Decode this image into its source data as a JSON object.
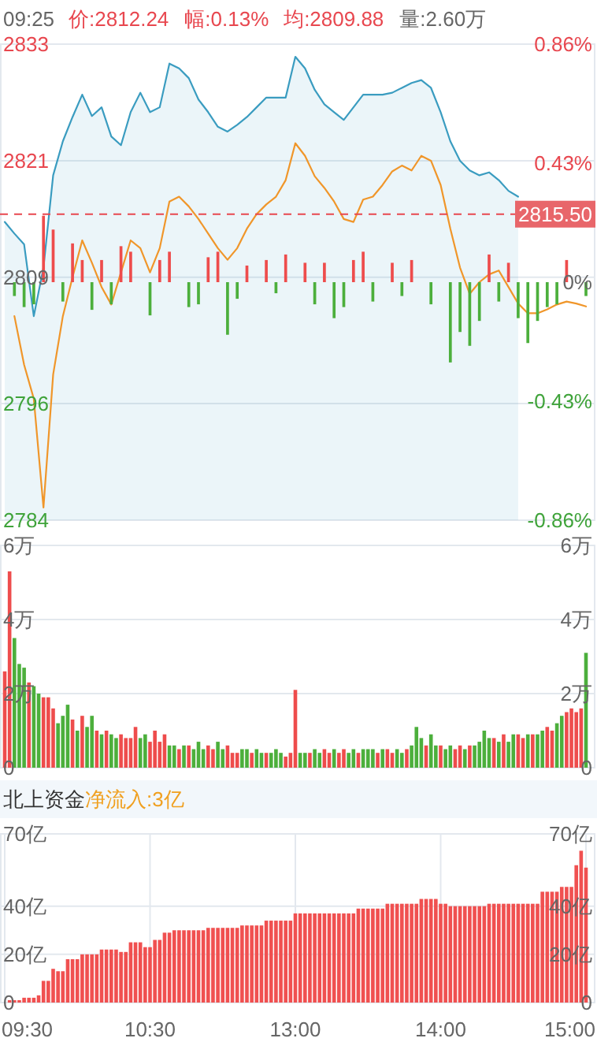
{
  "chart_data": [
    {
      "type": "line",
      "annotations": [
        "09:25",
        "价:2812.24",
        "幅:0.13%",
        "均:2809.88",
        "量:2.60万"
      ],
      "categories": [
        null,
        null,
        null,
        null,
        null,
        null,
        null,
        null,
        null,
        null,
        null,
        null,
        null,
        null,
        null,
        null,
        null,
        null,
        null,
        null,
        null,
        null,
        null,
        null,
        null,
        null,
        null,
        null,
        null,
        null,
        null,
        null,
        null,
        null,
        null,
        null,
        null,
        null,
        null,
        null,
        null,
        null,
        null,
        null,
        null,
        null,
        null,
        null,
        null,
        null,
        null,
        null,
        null,
        null,
        null,
        null,
        null,
        null,
        null,
        null,
        null
      ],
      "ylim": [
        2784,
        2833
      ],
      "yticks": [
        2784,
        2796,
        2809,
        2821,
        2833
      ],
      "y2lim": [
        -0.86,
        0.86
      ],
      "y2ticks": [
        {
          "value": -0.86,
          "label": "-0.86%"
        },
        {
          "value": -0.43,
          "label": "-0.43%"
        },
        {
          "value": 0,
          "label": "0%"
        },
        {
          "value": 0.43,
          "label": "0.43%"
        },
        {
          "value": 0.86,
          "label": "0.86%"
        }
      ],
      "grid": "y",
      "tick_labels": "y",
      "ref_lines": [
        {
          "axis": "y",
          "value": 2815.5,
          "label": "2815.50",
          "color": "#e8474f",
          "line_style": "dashed"
        }
      ],
      "series": [
        {
          "type": "area",
          "color": "#3a9cc0",
          "values": [
            2814.7,
            2813.5,
            2812.4,
            2805,
            2810,
            2819.5,
            2823,
            2825.5,
            2827.8,
            2825.6,
            2826.5,
            2823.5,
            2822.6,
            2826,
            2828,
            2826,
            2826.5,
            2831,
            2830.5,
            2829.5,
            2827.3,
            2826,
            2824.5,
            2824,
            2824.7,
            2825.5,
            2826.5,
            2827.5,
            2827.5,
            2827.5,
            2831.7,
            2830.5,
            2828.3,
            2826.8,
            2826,
            2825.2,
            2826.5,
            2827.8,
            2827.8,
            2827.8,
            2828,
            2828.5,
            2829,
            2829.3,
            2828.5,
            2826,
            2823,
            2821,
            2820,
            2819.5,
            2819.8,
            2819,
            2817.9,
            2817.3,
            null,
            null,
            null,
            null,
            null,
            null,
            null
          ]
        },
        {
          "color": "#f0962a",
          "values": [
            null,
            2805,
            2800,
            2796.5,
            2785.3,
            2799,
            2805,
            2809,
            2812.8,
            2810.5,
            2808,
            2806.2,
            2809.5,
            2812.8,
            2812,
            2809.5,
            2812,
            2816.8,
            2817.3,
            2816.3,
            2815,
            2813.5,
            2812,
            2810.8,
            2812,
            2814,
            2815.5,
            2816.5,
            2817.3,
            2819,
            2822.8,
            2821.5,
            2819.4,
            2818.2,
            2816.8,
            2815,
            2814.7,
            2817,
            2817.3,
            2818.5,
            2819.9,
            2820.5,
            2820,
            2821.5,
            2821,
            2818.5,
            2814,
            2810,
            2807.3,
            2808.5,
            2809.3,
            2809.7,
            2808,
            2806.3,
            2805.3,
            2805.3,
            2805.7,
            2806.2,
            2806.5,
            2806.3,
            2806
          ]
        },
        {
          "type": "bar",
          "axis": "y2",
          "color": "#ee4c4c",
          "values": [
            null,
            null,
            null,
            null,
            0.24,
            0.19,
            null,
            0.14,
            0.08,
            null,
            0.08,
            null,
            0.13,
            0.11,
            null,
            null,
            0.08,
            0.11,
            null,
            null,
            null,
            0.09,
            0.11,
            null,
            null,
            0.06,
            null,
            0.08,
            null,
            0.1,
            null,
            0.07,
            null,
            0.07,
            null,
            null,
            0.08,
            0.11,
            null,
            null,
            0.07,
            null,
            0.08,
            null,
            null,
            null,
            null,
            null,
            null,
            null,
            0.1,
            null,
            0.07,
            null,
            null,
            null,
            null,
            null,
            0.08,
            null,
            null
          ]
        },
        {
          "type": "bar",
          "axis": "y2",
          "color": "#4caf3c",
          "values": [
            null,
            -0.05,
            -0.09,
            -0.08,
            null,
            null,
            -0.07,
            null,
            null,
            -0.1,
            null,
            -0.08,
            null,
            null,
            null,
            -0.12,
            null,
            null,
            null,
            -0.09,
            -0.08,
            null,
            null,
            -0.19,
            -0.06,
            null,
            null,
            null,
            -0.04,
            null,
            null,
            null,
            -0.08,
            null,
            -0.13,
            -0.09,
            null,
            null,
            -0.07,
            null,
            null,
            -0.05,
            null,
            null,
            -0.08,
            null,
            -0.29,
            -0.18,
            -0.23,
            -0.14,
            null,
            -0.07,
            null,
            -0.13,
            -0.22,
            -0.14,
            -0.09,
            -0.08,
            null,
            null,
            -0.05
          ]
        }
      ]
    },
    {
      "type": "bar",
      "categories": [
        null,
        null,
        null,
        null,
        null,
        null,
        null,
        null,
        null,
        null,
        null,
        null,
        null,
        null,
        null,
        null,
        null,
        null,
        null,
        null,
        null,
        null,
        null,
        null,
        null,
        null,
        null,
        null,
        null,
        null,
        null,
        null,
        null,
        null,
        null,
        null,
        null,
        null,
        null,
        null,
        null,
        null,
        null,
        null,
        null,
        null,
        null,
        null,
        null,
        null,
        null,
        null,
        null,
        null,
        null,
        null,
        null,
        null,
        null,
        null,
        null,
        null,
        null,
        null,
        null,
        null,
        null,
        null,
        null,
        null,
        null,
        null,
        null,
        null,
        null,
        null,
        null,
        null,
        null,
        null,
        null,
        null,
        null,
        null,
        null,
        null,
        null,
        null,
        null,
        null,
        null,
        null,
        null,
        null,
        null,
        null,
        null,
        null,
        null,
        null,
        null,
        null,
        null,
        null,
        null,
        null,
        null,
        null,
        null,
        null,
        null,
        null,
        null,
        null,
        null,
        null,
        null,
        null,
        null,
        null,
        null
      ],
      "ylim": [
        0,
        6
      ],
      "yticks": [
        0,
        {
          "value": 2,
          "label": "2万"
        },
        {
          "value": 4,
          "label": "4万"
        },
        {
          "value": 6,
          "label": "6万"
        }
      ],
      "y2lim": [
        0,
        6
      ],
      "y2ticks": [
        0,
        {
          "value": 2,
          "label": "2万"
        },
        {
          "value": 4,
          "label": "4万"
        },
        {
          "value": 6,
          "label": "6万"
        }
      ],
      "grid": "y",
      "tick_labels": "y",
      "values": [
        2.6,
        5.3,
        3.5,
        2.8,
        2.7,
        2.3,
        2.2,
        2.0,
        1.9,
        1.9,
        1.6,
        1.2,
        1.4,
        1.7,
        1.3,
        1.0,
        1.4,
        1.1,
        1.4,
        1.0,
        0.9,
        1.0,
        0.9,
        0.8,
        0.9,
        0.8,
        0.8,
        1.1,
        0.8,
        0.9,
        0.7,
        1.0,
        0.7,
        0.9,
        0.6,
        0.6,
        0.5,
        0.6,
        0.6,
        0.5,
        0.7,
        0.5,
        0.6,
        0.5,
        0.7,
        0.5,
        0.6,
        0.4,
        0.4,
        0.5,
        0.5,
        0.4,
        0.5,
        0.4,
        0.4,
        0.4,
        0.5,
        0.4,
        0.3,
        0.4,
        2.1,
        0.4,
        0.4,
        0.4,
        0.5,
        0.4,
        0.5,
        0.4,
        0.5,
        0.4,
        0.5,
        0.4,
        0.5,
        0.4,
        0.5,
        0.5,
        0.5,
        0.4,
        0.5,
        0.5,
        0.4,
        0.5,
        0.4,
        0.5,
        0.6,
        1.1,
        0.8,
        0.6,
        0.9,
        0.6,
        0.6,
        0.5,
        0.6,
        0.5,
        0.6,
        0.5,
        0.6,
        0.6,
        0.7,
        1.0,
        0.8,
        0.8,
        0.7,
        0.9,
        0.7,
        0.9,
        0.9,
        0.8,
        0.9,
        0.9,
        0.9,
        1.0,
        1.1,
        1.0,
        1.2,
        1.4,
        1.5,
        1.6,
        1.5,
        1.6,
        3.1
      ],
      "colors": [
        "#ee4c4c",
        "#ee4c4c",
        "#4caf3c",
        "#4caf3c",
        "#4caf3c",
        "#ee4c4c",
        "#4caf3c",
        "#4caf3c",
        "#ee4c4c",
        "#ee4c4c",
        "#ee4c4c",
        "#4caf3c",
        "#4caf3c",
        "#4caf3c",
        "#ee4c4c",
        "#4caf3c",
        "#ee4c4c",
        "#4caf3c",
        "#4caf3c",
        "#ee4c4c",
        "#4caf3c",
        "#ee4c4c",
        "#4caf3c",
        "#4caf3c",
        "#ee4c4c",
        "#ee4c4c",
        "#ee4c4c",
        "#ee4c4c",
        "#4caf3c",
        "#4caf3c",
        "#ee4c4c",
        "#ee4c4c",
        "#ee4c4c",
        "#ee4c4c",
        "#4caf3c",
        "#4caf3c",
        "#ee4c4c",
        "#4caf3c",
        "#ee4c4c",
        "#4caf3c",
        "#4caf3c",
        "#4caf3c",
        "#ee4c4c",
        "#ee4c4c",
        "#4caf3c",
        "#4caf3c",
        "#ee4c4c",
        "#ee4c4c",
        "#ee4c4c",
        "#4caf3c",
        "#4caf3c",
        "#ee4c4c",
        "#4caf3c",
        "#4caf3c",
        "#ee4c4c",
        "#4caf3c",
        "#4caf3c",
        "#4caf3c",
        "#ee4c4c",
        "#ee4c4c",
        "#ee4c4c",
        "#4caf3c",
        "#4caf3c",
        "#ee4c4c",
        "#4caf3c",
        "#4caf3c",
        "#ee4c4c",
        "#ee4c4c",
        "#4caf3c",
        "#ee4c4c",
        "#ee4c4c",
        "#4caf3c",
        "#4caf3c",
        "#ee4c4c",
        "#4caf3c",
        "#4caf3c",
        "#4caf3c",
        "#ee4c4c",
        "#4caf3c",
        "#ee4c4c",
        "#ee4c4c",
        "#4caf3c",
        "#4caf3c",
        "#ee4c4c",
        "#4caf3c",
        "#4caf3c",
        "#4caf3c",
        "#ee4c4c",
        "#4caf3c",
        "#4caf3c",
        "#ee4c4c",
        "#4caf3c",
        "#4caf3c",
        "#ee4c4c",
        "#ee4c4c",
        "#4caf3c",
        "#ee4c4c",
        "#4caf3c",
        "#4caf3c",
        "#4caf3c",
        "#4caf3c",
        "#ee4c4c",
        "#4caf3c",
        "#ee4c4c",
        "#4caf3c",
        "#4caf3c",
        "#ee4c4c",
        "#ee4c4c",
        "#4caf3c",
        "#ee4c4c",
        "#4caf3c",
        "#4caf3c",
        "#ee4c4c",
        "#ee4c4c",
        "#4caf3c",
        "#4caf3c",
        "#ee4c4c",
        "#ee4c4c",
        "#ee4c4c",
        "#ee4c4c",
        "#4caf3c"
      ]
    },
    {
      "type": "bar",
      "title": "北上资金",
      "subtitle": "净流入:3亿",
      "color": "#f05050",
      "categories": [
        "09:30",
        null,
        null,
        null,
        null,
        null,
        null,
        null,
        null,
        null,
        null,
        null,
        null,
        null,
        null,
        null,
        null,
        null,
        null,
        null,
        null,
        null,
        null,
        null,
        null,
        null,
        null,
        null,
        null,
        null,
        "10:30",
        null,
        null,
        null,
        null,
        null,
        null,
        null,
        null,
        null,
        null,
        null,
        null,
        null,
        null,
        null,
        null,
        null,
        null,
        null,
        null,
        null,
        null,
        null,
        null,
        null,
        null,
        null,
        null,
        null,
        "13:00",
        null,
        null,
        null,
        null,
        null,
        null,
        null,
        null,
        null,
        null,
        null,
        null,
        null,
        null,
        null,
        null,
        null,
        null,
        null,
        null,
        null,
        null,
        null,
        null,
        null,
        null,
        null,
        null,
        null,
        "14:00",
        null,
        null,
        null,
        null,
        null,
        null,
        null,
        null,
        null,
        null,
        null,
        null,
        null,
        null,
        null,
        null,
        null,
        null,
        null,
        null,
        null,
        null,
        null,
        null,
        null,
        null,
        null,
        null,
        null,
        "15:00"
      ],
      "ylim": [
        0,
        70
      ],
      "yticks": [
        0,
        {
          "value": 20,
          "label": "20亿"
        },
        {
          "value": 40,
          "label": "40亿"
        },
        {
          "value": 70,
          "label": "70亿"
        }
      ],
      "y2lim": [
        0,
        70
      ],
      "y2ticks": [
        0,
        {
          "value": 20,
          "label": "20亿"
        },
        {
          "value": 40,
          "label": "40亿"
        },
        {
          "value": 70,
          "label": "70亿"
        }
      ],
      "grid": true,
      "values": [
        null,
        1,
        1,
        1,
        2,
        2,
        2,
        3,
        9,
        9,
        14,
        13,
        13,
        18,
        18,
        18,
        20,
        20,
        20,
        20,
        22,
        22,
        22,
        22,
        21,
        21,
        25,
        25,
        25,
        23,
        23,
        26,
        26,
        29,
        29,
        30,
        30,
        30,
        30,
        30,
        30,
        30,
        31,
        31,
        31,
        31,
        31,
        31,
        31,
        32,
        32,
        32,
        32,
        32,
        34,
        34,
        34,
        34,
        34,
        34,
        37,
        37,
        37,
        37,
        37,
        37,
        37,
        37,
        37,
        37,
        37,
        37,
        37,
        39,
        39,
        39,
        39,
        39,
        39,
        41,
        41,
        41,
        41,
        41,
        41,
        41,
        43,
        43,
        43,
        43,
        41,
        41,
        40,
        40,
        40,
        40,
        40,
        40,
        40,
        40,
        41,
        41,
        41,
        41,
        41,
        41,
        41,
        41,
        41,
        41,
        41,
        46,
        46,
        46,
        46,
        48,
        48,
        48,
        57,
        63,
        56
      ]
    }
  ]
}
